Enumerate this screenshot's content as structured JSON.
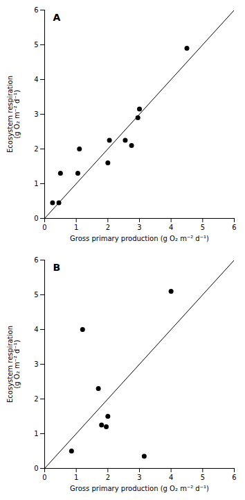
{
  "chart_data": [
    {
      "type": "scatter",
      "annotations": [
        {
          "text": "A"
        }
      ],
      "xlabel": "Gross primary production (g O₂ m⁻² d⁻¹)",
      "ylabel": "Ecosystem respiration\n(g O₂ m⁻² d⁻¹)",
      "xlim": [
        0,
        6
      ],
      "ylim": [
        0,
        6
      ],
      "xticks": [
        0,
        1,
        2,
        3,
        4,
        5,
        6
      ],
      "yticks": [
        0,
        1,
        2,
        3,
        4,
        5,
        6
      ],
      "grid": false,
      "series": [
        {
          "type": "line",
          "color": "#000000",
          "x": [
            0,
            6
          ],
          "values": [
            0,
            6
          ]
        },
        {
          "type": "scatter",
          "color": "#000000",
          "x": [
            0.25,
            0.45,
            0.5,
            1.05,
            1.1,
            2.0,
            2.05,
            2.55,
            2.75,
            2.95,
            3.0,
            4.5
          ],
          "values": [
            0.45,
            0.45,
            1.3,
            1.3,
            2.0,
            1.6,
            2.25,
            2.25,
            2.1,
            2.9,
            3.15,
            4.9
          ]
        }
      ]
    },
    {
      "type": "scatter",
      "annotations": [
        {
          "text": "B"
        }
      ],
      "xlabel": "Gross primary production (g O₂ m⁻² d⁻¹)",
      "ylabel": "Ecosystem respiration\n(g O₂ m⁻² d⁻¹)",
      "xlim": [
        0,
        6
      ],
      "ylim": [
        0,
        6
      ],
      "xticks": [
        0,
        1,
        2,
        3,
        4,
        5,
        6
      ],
      "yticks": [
        0,
        1,
        2,
        3,
        4,
        5,
        6
      ],
      "grid": false,
      "series": [
        {
          "type": "line",
          "color": "#000000",
          "x": [
            0,
            6
          ],
          "values": [
            0,
            6
          ]
        },
        {
          "type": "scatter",
          "color": "#000000",
          "x": [
            0.85,
            1.2,
            1.7,
            1.8,
            1.95,
            2.0,
            3.15,
            4.0
          ],
          "values": [
            0.5,
            4.0,
            2.3,
            1.25,
            1.2,
            1.5,
            0.35,
            5.1
          ]
        }
      ]
    }
  ]
}
